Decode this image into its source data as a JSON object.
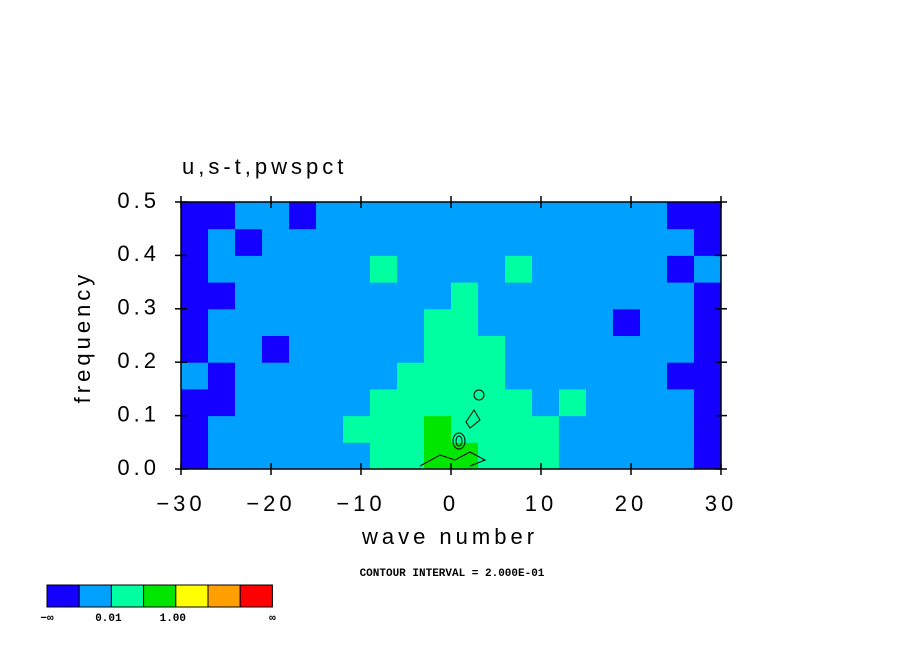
{
  "chart_data": {
    "type": "heatmap",
    "title": "u,s-t,pwspct",
    "x_label": "wave number",
    "y_label": "frequency",
    "annotation": "CONTOUR INTERVAL = 2.000E-01",
    "xlim": [
      -30,
      30
    ],
    "ylim": [
      0,
      0.5
    ],
    "xticks": [
      {
        "value": -30,
        "label": "−30"
      },
      {
        "value": -20,
        "label": "−20"
      },
      {
        "value": -10,
        "label": "−10"
      },
      0,
      10,
      20,
      30
    ],
    "yticks": [
      {
        "value": 0,
        "label": "0.0"
      },
      0.1,
      0.2,
      0.3,
      0.4,
      0.5
    ],
    "x": [
      -28.5,
      -25.5,
      -22.5,
      -19.5,
      -16.5,
      -13.5,
      -10.5,
      -7.5,
      -4.5,
      -1.5,
      1.5,
      4.5,
      7.5,
      10.5,
      13.5,
      16.5,
      19.5,
      22.5,
      25.5,
      28.5
    ],
    "y": [
      0.025,
      0.075,
      0.125,
      0.175,
      0.225,
      0.275,
      0.325,
      0.375,
      0.425,
      0.475
    ],
    "z": [
      [
        0.003,
        0.007,
        0.007,
        0.007,
        0.007,
        0.007,
        0.007,
        0.2,
        0.2,
        0.7,
        0.7,
        0.2,
        0.2,
        0.2,
        0.007,
        0.007,
        0.007,
        0.007,
        0.007,
        0.003
      ],
      [
        0.003,
        0.007,
        0.007,
        0.007,
        0.007,
        0.007,
        0.2,
        0.2,
        0.2,
        0.7,
        0.2,
        0.2,
        0.2,
        0.2,
        0.007,
        0.007,
        0.007,
        0.007,
        0.007,
        0.003
      ],
      [
        0.003,
        0.003,
        0.007,
        0.007,
        0.007,
        0.007,
        0.007,
        0.2,
        0.2,
        0.2,
        0.2,
        0.2,
        0.2,
        0.007,
        0.2,
        0.007,
        0.007,
        0.007,
        0.007,
        0.003
      ],
      [
        0.007,
        0.003,
        0.007,
        0.007,
        0.007,
        0.007,
        0.007,
        0.007,
        0.2,
        0.2,
        0.2,
        0.2,
        0.007,
        0.007,
        0.007,
        0.007,
        0.007,
        0.007,
        0.003,
        0.003
      ],
      [
        0.003,
        0.007,
        0.007,
        0.003,
        0.007,
        0.007,
        0.007,
        0.007,
        0.007,
        0.2,
        0.2,
        0.2,
        0.007,
        0.007,
        0.007,
        0.007,
        0.007,
        0.007,
        0.007,
        0.003
      ],
      [
        0.003,
        0.007,
        0.007,
        0.007,
        0.007,
        0.007,
        0.007,
        0.007,
        0.007,
        0.2,
        0.2,
        0.007,
        0.007,
        0.007,
        0.007,
        0.007,
        0.003,
        0.007,
        0.007,
        0.003
      ],
      [
        0.003,
        0.003,
        0.007,
        0.007,
        0.007,
        0.007,
        0.007,
        0.007,
        0.007,
        0.007,
        0.2,
        0.007,
        0.007,
        0.007,
        0.007,
        0.007,
        0.007,
        0.007,
        0.007,
        0.003
      ],
      [
        0.003,
        0.007,
        0.007,
        0.007,
        0.007,
        0.007,
        0.007,
        0.2,
        0.007,
        0.007,
        0.007,
        0.007,
        0.2,
        0.007,
        0.007,
        0.007,
        0.007,
        0.007,
        0.003,
        0.007
      ],
      [
        0.003,
        0.007,
        0.003,
        0.007,
        0.007,
        0.007,
        0.007,
        0.007,
        0.007,
        0.007,
        0.007,
        0.007,
        0.007,
        0.007,
        0.007,
        0.007,
        0.007,
        0.007,
        0.007,
        0.003
      ],
      [
        0.003,
        0.003,
        0.007,
        0.007,
        0.003,
        0.007,
        0.007,
        0.007,
        0.007,
        0.007,
        0.007,
        0.007,
        0.007,
        0.007,
        0.007,
        0.007,
        0.007,
        0.007,
        0.003,
        0.003
      ]
    ],
    "levels": [
      0.005,
      0.01,
      0.5,
      1.0,
      2.0,
      5.0
    ],
    "colors": [
      "#1400ff",
      "#00a0ff",
      "#00ffa0",
      "#00e600",
      "#ffff00",
      "#ffa000",
      "#ff0000"
    ],
    "colorbar_ticks": [
      {
        "value": 0.01,
        "label": "0.01"
      },
      {
        "value": 1.0,
        "label": "1.00"
      }
    ],
    "colorbar_ends": [
      "−∞",
      "∞"
    ]
  }
}
